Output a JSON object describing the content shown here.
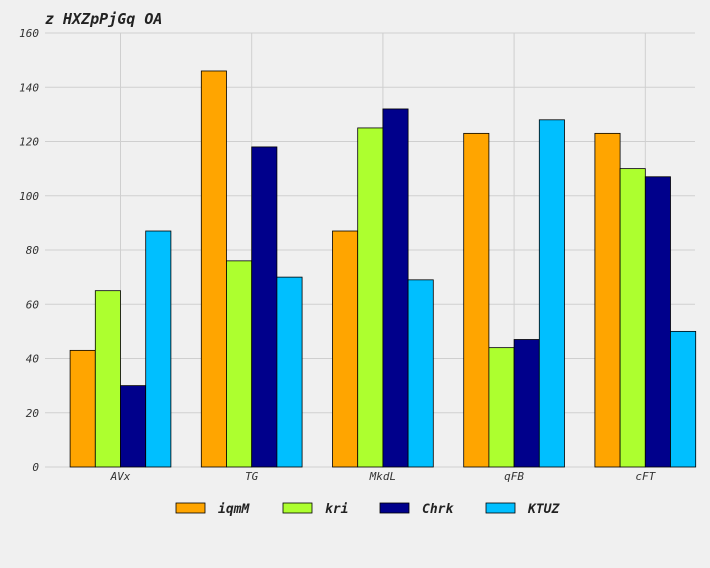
{
  "chart_data": {
    "type": "bar",
    "title": "z HXZpPjGq OA",
    "xlabel": "",
    "ylabel": "",
    "categories": [
      "AVx",
      "TG",
      "MkdL",
      "qFB",
      "cFT"
    ],
    "series": [
      {
        "name": "iqmM",
        "color": "#ffa500",
        "values": [
          43,
          146,
          87,
          123,
          123
        ]
      },
      {
        "name": "kri",
        "color": "#adff2f",
        "values": [
          65,
          76,
          125,
          44,
          110
        ]
      },
      {
        "name": "Chrk",
        "color": "#00008b",
        "values": [
          30,
          118,
          132,
          47,
          107
        ]
      },
      {
        "name": "KTUZ",
        "color": "#00bfff",
        "values": [
          87,
          70,
          69,
          128,
          50
        ]
      }
    ],
    "ylim": [
      0,
      160
    ],
    "yticks": [
      0,
      20,
      40,
      60,
      80,
      100,
      120,
      140,
      160
    ],
    "grid": true,
    "legend_position": "bottom-center"
  }
}
